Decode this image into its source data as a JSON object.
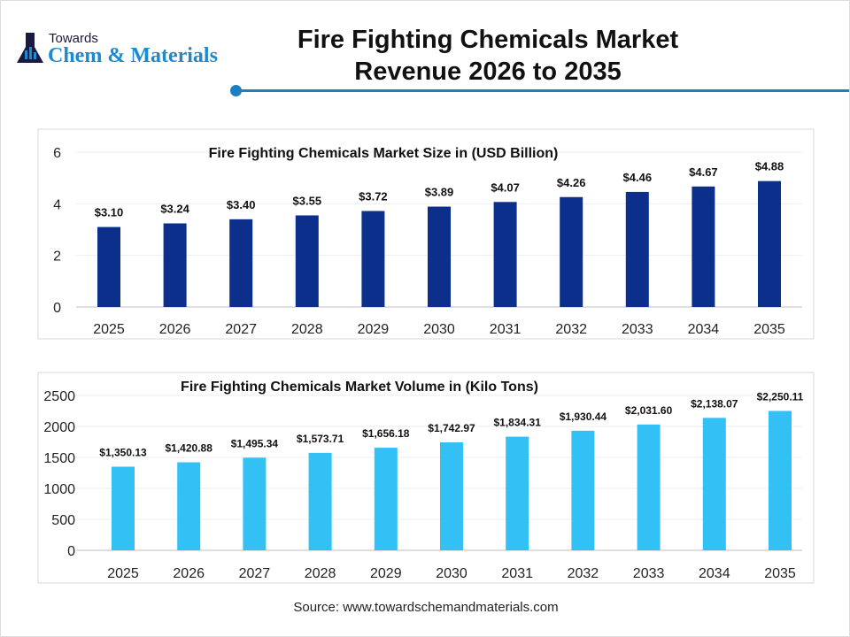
{
  "logo": {
    "line1": "Towards",
    "line2": "Chem & Materials"
  },
  "header": {
    "title_line1": "Fire Fighting Chemicals Market",
    "title_line2": "Revenue 2026 to 2035"
  },
  "chart_data": [
    {
      "type": "bar",
      "title": "Fire Fighting Chemicals Market Size in (USD Billion)",
      "color": "#0b2f8a",
      "categories": [
        "2025",
        "2026",
        "2027",
        "2028",
        "2029",
        "2030",
        "2031",
        "2032",
        "2033",
        "2034",
        "2035"
      ],
      "values": [
        3.1,
        3.24,
        3.4,
        3.55,
        3.72,
        3.89,
        4.07,
        4.26,
        4.46,
        4.67,
        4.88
      ],
      "labels": [
        "$3.10",
        "$3.24",
        "$3.40",
        "$3.55",
        "$3.72",
        "$3.89",
        "$4.07",
        "$4.26",
        "$4.46",
        "$4.67",
        "$4.88"
      ],
      "ylim": [
        0,
        6
      ],
      "yticks": [
        "0",
        "2",
        "4",
        "6"
      ],
      "grid": true
    },
    {
      "type": "bar",
      "title": "Fire Fighting Chemicals Market Volume in (Kilo Tons)",
      "color": "#33c0f5",
      "categories": [
        "2025",
        "2026",
        "2027",
        "2028",
        "2029",
        "2030",
        "2031",
        "2032",
        "2033",
        "2034",
        "2035"
      ],
      "values": [
        1350.13,
        1420.88,
        1495.34,
        1573.71,
        1656.18,
        1742.97,
        1834.31,
        1930.44,
        2031.6,
        2138.07,
        2250.11
      ],
      "labels": [
        "$1,350.13",
        "$1,420.88",
        "$1,495.34",
        "$1,573.71",
        "$1,656.18",
        "$1,742.97",
        "$1,834.31",
        "$1,930.44",
        "$2,031.60",
        "$2,138.07",
        "$2,250.11"
      ],
      "ylim": [
        0,
        2500
      ],
      "yticks": [
        "0",
        "500",
        "1000",
        "1500",
        "2000",
        "2500"
      ],
      "grid": true
    }
  ],
  "source": "Source: www.towardschemandmaterials.com"
}
